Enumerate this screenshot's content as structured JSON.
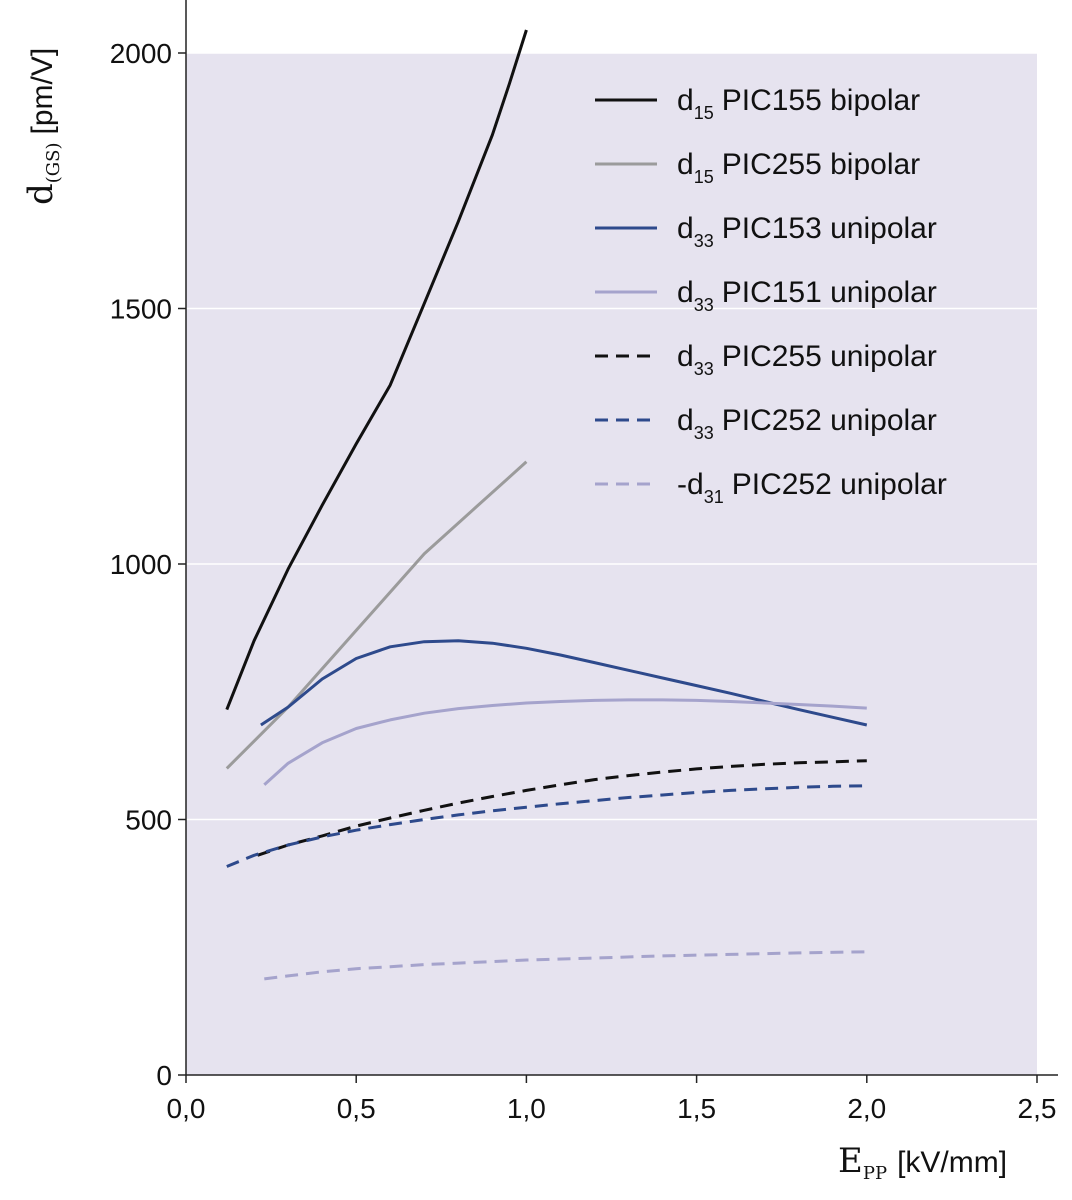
{
  "chart_data": {
    "type": "line",
    "title": "",
    "xlabel": {
      "main": "E",
      "sub": "PP",
      "unit": "[kV/mm]"
    },
    "ylabel": {
      "main": "d",
      "sub": "(GS)",
      "unit": "[pm/V]"
    },
    "xlim": [
      0,
      2.5
    ],
    "ylim": [
      0,
      2000
    ],
    "xticks": [
      0,
      0.5,
      1.0,
      1.5,
      2.0,
      2.5
    ],
    "xtick_labels": [
      "0,0",
      "0,5",
      "1,0",
      "1,5",
      "2,0",
      "2,5"
    ],
    "yticks": [
      0,
      500,
      1000,
      1500,
      2000
    ],
    "ytick_labels": [
      "0",
      "500",
      "1000",
      "1500",
      "2000"
    ],
    "grid": "horizontal",
    "background": "#e6e3ef",
    "legend_position": "top-right",
    "series": [
      {
        "id": "s1",
        "prefix": "d",
        "sub": "15",
        "name": "PIC155 bipolar",
        "color": "#111111",
        "dash": "solid",
        "points": [
          [
            0.12,
            715
          ],
          [
            0.2,
            850
          ],
          [
            0.3,
            990
          ],
          [
            0.4,
            1115
          ],
          [
            0.5,
            1235
          ],
          [
            0.6,
            1350
          ],
          [
            0.7,
            1510
          ],
          [
            0.8,
            1670
          ],
          [
            0.9,
            1840
          ],
          [
            0.95,
            1940
          ],
          [
            1.0,
            2045
          ]
        ]
      },
      {
        "id": "s2",
        "prefix": "d",
        "sub": "15",
        "name": "PIC255 bipolar",
        "color": "#9b9b9b",
        "dash": "solid",
        "points": [
          [
            0.12,
            600
          ],
          [
            0.3,
            720
          ],
          [
            0.5,
            870
          ],
          [
            0.7,
            1020
          ],
          [
            0.85,
            1110
          ],
          [
            1.0,
            1200
          ]
        ]
      },
      {
        "id": "s3",
        "prefix": "d",
        "sub": "33",
        "name": "PIC153 unipolar",
        "color": "#2e4a8c",
        "dash": "solid",
        "points": [
          [
            0.22,
            685
          ],
          [
            0.3,
            720
          ],
          [
            0.4,
            775
          ],
          [
            0.5,
            815
          ],
          [
            0.6,
            838
          ],
          [
            0.7,
            848
          ],
          [
            0.8,
            850
          ],
          [
            0.9,
            845
          ],
          [
            1.0,
            835
          ],
          [
            1.1,
            822
          ],
          [
            1.2,
            807
          ],
          [
            1.3,
            792
          ],
          [
            1.4,
            777
          ],
          [
            1.5,
            762
          ],
          [
            1.6,
            747
          ],
          [
            1.7,
            731
          ],
          [
            1.8,
            715
          ],
          [
            1.9,
            700
          ],
          [
            2.0,
            685
          ]
        ]
      },
      {
        "id": "s4",
        "prefix": "d",
        "sub": "33",
        "name": "PIC151 unipolar",
        "color": "#a5a3cc",
        "dash": "solid",
        "points": [
          [
            0.23,
            568
          ],
          [
            0.3,
            610
          ],
          [
            0.4,
            650
          ],
          [
            0.5,
            678
          ],
          [
            0.6,
            695
          ],
          [
            0.7,
            708
          ],
          [
            0.8,
            717
          ],
          [
            0.9,
            723
          ],
          [
            1.0,
            728
          ],
          [
            1.1,
            731
          ],
          [
            1.2,
            733
          ],
          [
            1.3,
            734
          ],
          [
            1.4,
            734
          ],
          [
            1.5,
            733
          ],
          [
            1.6,
            731
          ],
          [
            1.7,
            728
          ],
          [
            1.8,
            725
          ],
          [
            1.9,
            722
          ],
          [
            2.0,
            718
          ]
        ]
      },
      {
        "id": "s5",
        "prefix": "d",
        "sub": "33",
        "name": "PIC255 unipolar",
        "color": "#111111",
        "dash": "dashed",
        "points": [
          [
            0.21,
            430
          ],
          [
            0.3,
            450
          ],
          [
            0.4,
            468
          ],
          [
            0.5,
            487
          ],
          [
            0.6,
            503
          ],
          [
            0.7,
            518
          ],
          [
            0.8,
            532
          ],
          [
            0.9,
            545
          ],
          [
            1.0,
            557
          ],
          [
            1.1,
            568
          ],
          [
            1.2,
            578
          ],
          [
            1.3,
            586
          ],
          [
            1.4,
            593
          ],
          [
            1.5,
            599
          ],
          [
            1.6,
            604
          ],
          [
            1.7,
            608
          ],
          [
            1.8,
            611
          ],
          [
            1.9,
            613
          ],
          [
            2.0,
            615
          ]
        ]
      },
      {
        "id": "s6",
        "prefix": "d",
        "sub": "33",
        "name": "PIC252 unipolar",
        "color": "#2e4a8c",
        "dash": "dashed",
        "points": [
          [
            0.12,
            408
          ],
          [
            0.2,
            430
          ],
          [
            0.3,
            450
          ],
          [
            0.4,
            466
          ],
          [
            0.5,
            479
          ],
          [
            0.6,
            490
          ],
          [
            0.7,
            500
          ],
          [
            0.8,
            509
          ],
          [
            0.9,
            517
          ],
          [
            1.0,
            524
          ],
          [
            1.1,
            531
          ],
          [
            1.2,
            537
          ],
          [
            1.3,
            543
          ],
          [
            1.4,
            548
          ],
          [
            1.5,
            553
          ],
          [
            1.6,
            557
          ],
          [
            1.7,
            560
          ],
          [
            1.8,
            563
          ],
          [
            1.9,
            565
          ],
          [
            2.0,
            566
          ]
        ]
      },
      {
        "id": "s7",
        "prefix": "-d",
        "sub": "31",
        "name": "PIC252 unipolar",
        "color": "#a5a3cc",
        "dash": "dashed",
        "points": [
          [
            0.23,
            188
          ],
          [
            0.3,
            194
          ],
          [
            0.4,
            202
          ],
          [
            0.5,
            208
          ],
          [
            0.6,
            212
          ],
          [
            0.7,
            216
          ],
          [
            0.8,
            219
          ],
          [
            0.9,
            222
          ],
          [
            1.0,
            225
          ],
          [
            1.2,
            229
          ],
          [
            1.4,
            233
          ],
          [
            1.6,
            236
          ],
          [
            1.8,
            239
          ],
          [
            2.0,
            241
          ]
        ]
      }
    ]
  }
}
